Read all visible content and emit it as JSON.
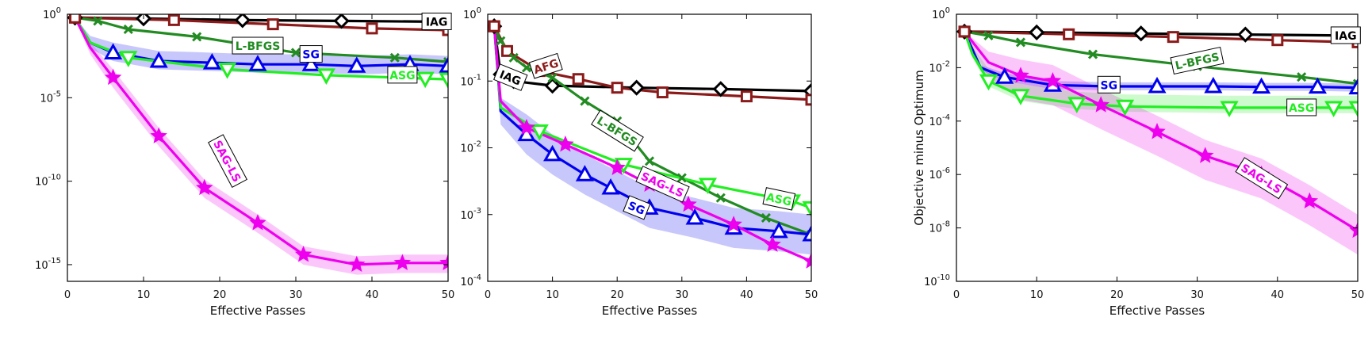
{
  "chart_data": [
    {
      "type": "line",
      "xlabel": "Effective Passes",
      "ylabel": "",
      "xlim": [
        0,
        50
      ],
      "ylim_exp": [
        -16,
        0
      ],
      "y_scale": "log",
      "xticks": [
        "0",
        "10",
        "20",
        "30",
        "40",
        "50"
      ],
      "yticks": [
        {
          "exp": 0,
          "label": "10",
          "sup": "0"
        },
        {
          "exp": -5,
          "label": "10",
          "sup": "-5"
        },
        {
          "exp": -10,
          "label": "10",
          "sup": "-10"
        },
        {
          "exp": -15,
          "label": "10",
          "sup": "-15"
        }
      ],
      "series": [
        {
          "name": "IAG",
          "color": "#000000",
          "marker": "diamond",
          "x": [
            1,
            10,
            23,
            36,
            50
          ],
          "y_exp": [
            -0.2,
            -0.25,
            -0.35,
            -0.4,
            -0.45
          ]
        },
        {
          "name": "AFG",
          "color": "#8b1a1a",
          "marker": "square",
          "x": [
            1,
            14,
            27,
            40,
            50
          ],
          "y_exp": [
            -0.2,
            -0.35,
            -0.6,
            -0.85,
            -0.95
          ]
        },
        {
          "name": "L-BFGS",
          "color": "#228b22",
          "marker": "x",
          "x": [
            1,
            4,
            8,
            17,
            30,
            43,
            50
          ],
          "y_exp": [
            -0.2,
            -0.4,
            -0.9,
            -1.35,
            -2.3,
            -2.6,
            -2.85
          ]
        },
        {
          "name": "SG",
          "color": "#0000ee",
          "marker": "triangle-up",
          "x": [
            1,
            3,
            6,
            12,
            19,
            25,
            32,
            38,
            45,
            50
          ],
          "y_exp": [
            -0.2,
            -1.7,
            -2.3,
            -2.8,
            -2.9,
            -3.0,
            -3.0,
            -3.1,
            -3.0,
            -3.1
          ],
          "band": [
            0.6,
            0.5
          ]
        },
        {
          "name": "ASG",
          "color": "#22ee22",
          "marker": "triangle-down",
          "x": [
            1,
            3,
            8,
            21,
            34,
            47,
            50
          ],
          "y_exp": [
            -0.2,
            -1.7,
            -2.6,
            -3.3,
            -3.65,
            -3.85,
            -3.9
          ]
        },
        {
          "name": "SAG-LS",
          "color": "#ee00ee",
          "marker": "star",
          "x": [
            1,
            3,
            6,
            12,
            18,
            25,
            31,
            38,
            44,
            50
          ],
          "y_exp": [
            -0.2,
            -2.0,
            -3.8,
            -7.3,
            -10.4,
            -12.5,
            -14.4,
            -15.0,
            -14.9,
            -14.9
          ],
          "band": [
            0.5,
            0.6
          ]
        }
      ],
      "labels": [
        {
          "text": "IAG",
          "series": "IAG",
          "x": 48.5,
          "y_exp": -0.45,
          "rotate": 0
        },
        {
          "text": "L-BFGS",
          "series": "L-BFGS",
          "x": 25,
          "y_exp": -1.9,
          "rotate": 0
        },
        {
          "text": "SG",
          "series": "SG",
          "x": 32,
          "y_exp": -2.4,
          "rotate": 0
        },
        {
          "text": "ASG",
          "series": "ASG",
          "x": 44,
          "y_exp": -3.65,
          "rotate": 0
        },
        {
          "text": "SAG-LS",
          "series": "SAG-LS",
          "x": 21,
          "y_exp": -8.8,
          "rotate": 62
        }
      ]
    },
    {
      "type": "line",
      "xlabel": "Effective Passes",
      "ylabel": "Objective minus Optimum",
      "xlim": [
        0,
        50
      ],
      "ylim_exp": [
        -4,
        0
      ],
      "y_scale": "log",
      "xticks": [
        "0",
        "10",
        "20",
        "30",
        "40",
        "50"
      ],
      "yticks": [
        {
          "exp": 0,
          "label": "10",
          "sup": "0"
        },
        {
          "exp": -1,
          "label": "10",
          "sup": "-1"
        },
        {
          "exp": -2,
          "label": "10",
          "sup": "-2"
        },
        {
          "exp": -3,
          "label": "10",
          "sup": "-3"
        },
        {
          "exp": -4,
          "label": "10",
          "sup": "-4"
        }
      ],
      "series": [
        {
          "name": "IAG",
          "color": "#000000",
          "marker": "diamond",
          "x": [
            1,
            2,
            4,
            10,
            23,
            36,
            50
          ],
          "y_exp": [
            -0.18,
            -0.9,
            -1.0,
            -1.07,
            -1.1,
            -1.12,
            -1.15
          ]
        },
        {
          "name": "AFG",
          "color": "#8b1a1a",
          "marker": "square",
          "x": [
            1,
            3,
            8,
            14,
            20,
            27,
            40,
            50
          ],
          "y_exp": [
            -0.18,
            -0.55,
            -0.85,
            -0.97,
            -1.1,
            -1.17,
            -1.23,
            -1.28
          ]
        },
        {
          "name": "L-BFGS",
          "color": "#228b22",
          "marker": "x",
          "x": [
            1,
            2,
            4,
            6,
            10,
            15,
            20,
            25,
            30,
            36,
            43,
            50
          ],
          "y_exp": [
            -0.18,
            -0.4,
            -0.65,
            -0.8,
            -0.95,
            -1.3,
            -1.6,
            -2.2,
            -2.45,
            -2.75,
            -3.05,
            -3.3
          ]
        },
        {
          "name": "SG",
          "color": "#0000ee",
          "marker": "triangle-up",
          "x": [
            1,
            2,
            6,
            10,
            15,
            19,
            25,
            32,
            38,
            45,
            50
          ],
          "y_exp": [
            -0.18,
            -1.45,
            -1.8,
            -2.1,
            -2.4,
            -2.6,
            -2.9,
            -3.05,
            -3.2,
            -3.25,
            -3.3
          ],
          "band": [
            0.3,
            0.3
          ]
        },
        {
          "name": "ASG",
          "color": "#22ee22",
          "marker": "triangle-down",
          "x": [
            1,
            2,
            8,
            21,
            34,
            47,
            50
          ],
          "y_exp": [
            -0.18,
            -1.4,
            -1.75,
            -2.25,
            -2.55,
            -2.8,
            -2.9
          ]
        },
        {
          "name": "SAG-LS",
          "color": "#ee00ee",
          "marker": "star",
          "x": [
            1,
            2,
            6,
            12,
            20,
            25,
            31,
            38,
            44,
            50
          ],
          "y_exp": [
            -0.18,
            -1.3,
            -1.7,
            -1.95,
            -2.3,
            -2.55,
            -2.85,
            -3.15,
            -3.45,
            -3.7
          ]
        }
      ],
      "labels": [
        {
          "text": "AFG",
          "series": "AFG",
          "x": 9,
          "y_exp": -0.78,
          "rotate": -18
        },
        {
          "text": "IAG",
          "series": "IAG",
          "x": 3.5,
          "y_exp": -0.95,
          "rotate": 22
        },
        {
          "text": "L-BFGS",
          "series": "L-BFGS",
          "x": 20,
          "y_exp": -1.75,
          "rotate": 32
        },
        {
          "text": "SAG-LS",
          "series": "SAG-LS",
          "x": 27,
          "y_exp": -2.55,
          "rotate": 24
        },
        {
          "text": "SG",
          "series": "SG",
          "x": 23,
          "y_exp": -2.9,
          "rotate": 22
        },
        {
          "text": "ASG",
          "series": "ASG",
          "x": 45,
          "y_exp": -2.77,
          "rotate": 12
        }
      ]
    },
    {
      "type": "line",
      "xlabel": "Effective Passes",
      "ylabel": "Objective minus Optimum",
      "xlim": [
        0,
        50
      ],
      "ylim_exp": [
        -10,
        0
      ],
      "y_scale": "log",
      "xticks": [
        "0",
        "10",
        "20",
        "30",
        "40",
        "50"
      ],
      "yticks": [
        {
          "exp": 0,
          "label": "10",
          "sup": "0"
        },
        {
          "exp": -2,
          "label": "10",
          "sup": "-2"
        },
        {
          "exp": -4,
          "label": "10",
          "sup": "-4"
        },
        {
          "exp": -6,
          "label": "10",
          "sup": "-6"
        },
        {
          "exp": -8,
          "label": "10",
          "sup": "-8"
        },
        {
          "exp": -10,
          "label": "10",
          "sup": "-10"
        }
      ],
      "series": [
        {
          "name": "IAG",
          "color": "#000000",
          "marker": "diamond",
          "x": [
            1,
            10,
            23,
            36,
            50
          ],
          "y_exp": [
            -0.65,
            -0.68,
            -0.72,
            -0.76,
            -0.8
          ]
        },
        {
          "name": "AFG",
          "color": "#8b1a1a",
          "marker": "square",
          "x": [
            1,
            14,
            27,
            40,
            50
          ],
          "y_exp": [
            -0.65,
            -0.75,
            -0.85,
            -0.97,
            -1.05
          ]
        },
        {
          "name": "L-BFGS",
          "color": "#228b22",
          "marker": "x",
          "x": [
            1,
            4,
            8,
            17,
            30,
            43,
            50
          ],
          "y_exp": [
            -0.65,
            -0.8,
            -1.05,
            -1.5,
            -1.95,
            -2.35,
            -2.6
          ]
        },
        {
          "name": "SG",
          "color": "#0000ee",
          "marker": "triangle-up",
          "x": [
            1,
            3,
            6,
            12,
            19,
            25,
            32,
            38,
            45,
            50
          ],
          "y_exp": [
            -0.65,
            -2.0,
            -2.35,
            -2.65,
            -2.7,
            -2.7,
            -2.7,
            -2.72,
            -2.72,
            -2.75
          ],
          "band": [
            0.15,
            0.15
          ]
        },
        {
          "name": "ASG",
          "color": "#22ee22",
          "marker": "triangle-down",
          "x": [
            1,
            2,
            4,
            8,
            15,
            21,
            34,
            47,
            50
          ],
          "y_exp": [
            -0.65,
            -1.5,
            -2.5,
            -3.05,
            -3.35,
            -3.45,
            -3.5,
            -3.5,
            -3.5
          ],
          "band": [
            0.45,
            0.2
          ]
        },
        {
          "name": "SAG-LS",
          "color": "#ee00ee",
          "marker": "star",
          "x": [
            1,
            4,
            8,
            12,
            18,
            25,
            31,
            38,
            44,
            50
          ],
          "y_exp": [
            -0.65,
            -1.8,
            -2.3,
            -2.5,
            -3.4,
            -4.4,
            -5.3,
            -6.0,
            -7.0,
            -8.1
          ],
          "band": [
            0.6,
            0.9
          ]
        }
      ],
      "labels": [
        {
          "text": "IAG",
          "series": "IAG",
          "x": 48.5,
          "y_exp": -0.8,
          "rotate": 0
        },
        {
          "text": "L-BFGS",
          "series": "L-BFGS",
          "x": 30,
          "y_exp": -1.75,
          "rotate": -12
        },
        {
          "text": "SG",
          "series": "SG",
          "x": 19,
          "y_exp": -2.65,
          "rotate": 0
        },
        {
          "text": "ASG",
          "series": "ASG",
          "x": 43,
          "y_exp": -3.5,
          "rotate": 0
        },
        {
          "text": "SAG-LS",
          "series": "SAG-LS",
          "x": 38,
          "y_exp": -6.15,
          "rotate": 32
        }
      ]
    }
  ]
}
